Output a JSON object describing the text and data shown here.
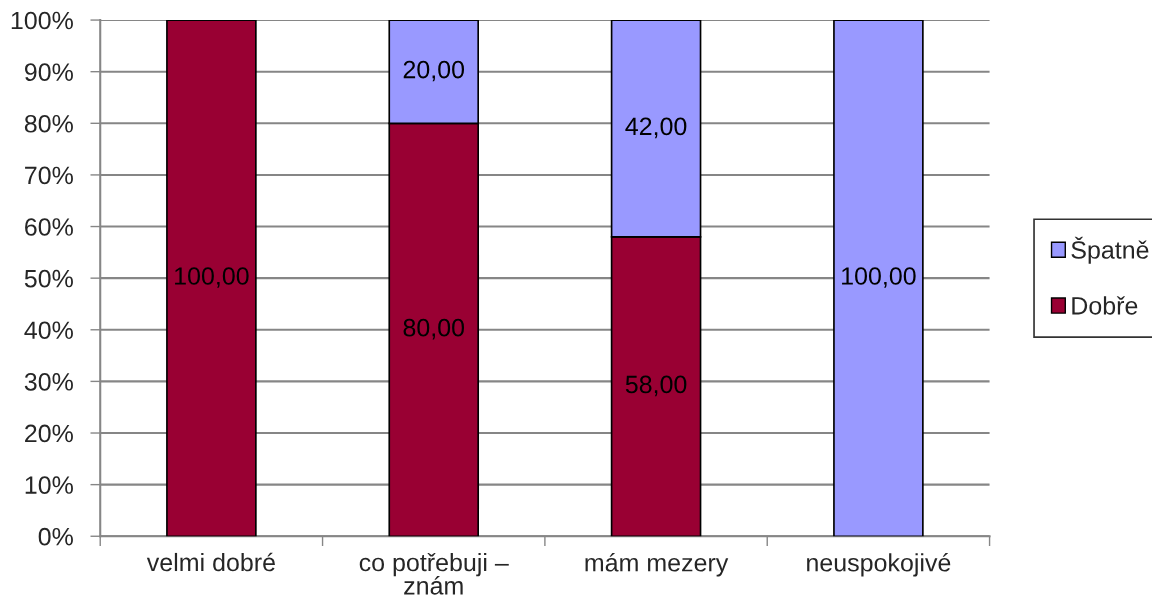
{
  "chart_data": {
    "type": "bar",
    "stacked": true,
    "categories": [
      "velmi dobré",
      "co potřebuji – znám",
      "mám mezery",
      "neuspokojivé"
    ],
    "series": [
      {
        "name": "Dobře",
        "color": "#990033",
        "values": [
          100,
          80,
          58,
          0
        ],
        "value_labels": [
          "100,00",
          "80,00",
          "58,00",
          null
        ]
      },
      {
        "name": "Špatně",
        "color": "#9999ff",
        "values": [
          0,
          20,
          42,
          100
        ],
        "value_labels": [
          null,
          "20,00",
          "42,00",
          "100,00"
        ]
      }
    ],
    "ylim": [
      0,
      100
    ],
    "yticks": [
      {
        "value": 0,
        "label": "0%"
      },
      {
        "value": 10,
        "label": "10%"
      },
      {
        "value": 20,
        "label": "20%"
      },
      {
        "value": 30,
        "label": "30%"
      },
      {
        "value": 40,
        "label": "40%"
      },
      {
        "value": 50,
        "label": "50%"
      },
      {
        "value": 60,
        "label": "60%"
      },
      {
        "value": 70,
        "label": "70%"
      },
      {
        "value": 80,
        "label": "80%"
      },
      {
        "value": 90,
        "label": "90%"
      },
      {
        "value": 100,
        "label": "100%"
      }
    ],
    "grid": "y",
    "legend": "right"
  }
}
